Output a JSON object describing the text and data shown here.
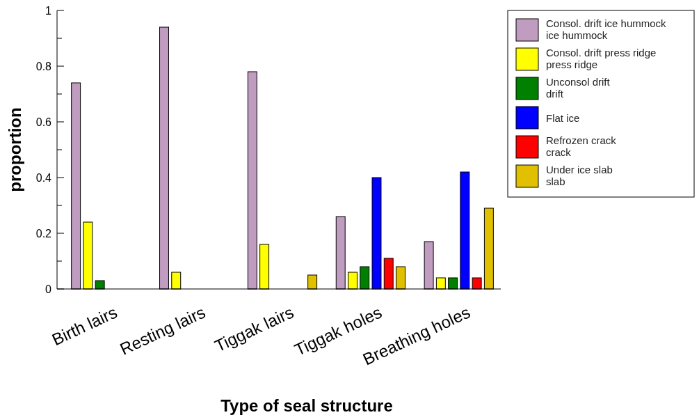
{
  "chart_data": {
    "type": "bar",
    "xlabel": "Type of seal structure",
    "ylabel": "proportion",
    "categories": [
      "Birth lairs",
      "Resting lairs",
      "Tiggak lairs",
      "Tiggak holes",
      "Breathing holes"
    ],
    "series": [
      {
        "name": "Consol. drift ice hummock\nice hummock",
        "color": "#c09cc0",
        "values": [
          0.74,
          0.94,
          0.78,
          0.26,
          0.17
        ]
      },
      {
        "name": "Consol. drift press ridge\npress ridge",
        "color": "#ffff00",
        "values": [
          0.24,
          0.06,
          0.16,
          0.06,
          0.04
        ]
      },
      {
        "name": "Unconsol drift\ndrift",
        "color": "#008000",
        "values": [
          0.03,
          null,
          null,
          0.08,
          0.04
        ]
      },
      {
        "name": "Flat ice",
        "color": "#0000ff",
        "values": [
          null,
          null,
          null,
          0.4,
          0.42
        ]
      },
      {
        "name": "Refrozen crack\ncrack",
        "color": "#ff0000",
        "values": [
          null,
          null,
          null,
          0.11,
          0.04
        ]
      },
      {
        "name": "Under ice slab\nslab",
        "color": "#e0c000",
        "values": [
          null,
          null,
          0.05,
          0.08,
          0.29
        ]
      }
    ],
    "ylim": [
      0,
      1
    ],
    "yticks": [
      0,
      {
        "value": 0.1,
        "label": null
      },
      0.2,
      {
        "value": 0.3,
        "label": null
      },
      0.4,
      {
        "value": 0.5,
        "label": null
      },
      0.6,
      {
        "value": 0.7,
        "label": null
      },
      0.8,
      {
        "value": 0.9,
        "label": null
      },
      1
    ],
    "grid": false,
    "legend": "top right"
  }
}
